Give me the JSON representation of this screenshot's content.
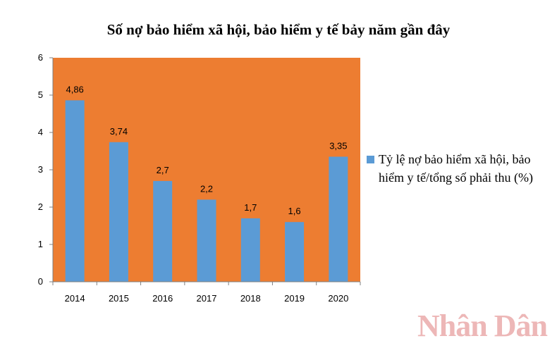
{
  "chart_data": {
    "type": "bar",
    "title": "Số nợ bảo hiểm xã hội, bảo hiểm y tế bảy năm gần đây",
    "categories": [
      "2014",
      "2015",
      "2016",
      "2017",
      "2018",
      "2019",
      "2020"
    ],
    "values": [
      4.86,
      3.74,
      2.7,
      2.2,
      1.7,
      1.6,
      3.35
    ],
    "data_labels": [
      "4,86",
      "3,74",
      "2,7",
      "2,2",
      "1,7",
      "1,6",
      "3,35"
    ],
    "yticks": [
      "0",
      "1",
      "2",
      "3",
      "4",
      "5",
      "6"
    ],
    "ylim": [
      0,
      6
    ],
    "xlabel": "",
    "ylabel": "",
    "series_name": "Tỷ lệ nợ bảo hiểm xã hội, bảo hiểm y tế/tổng số phải thu (%)",
    "legend_position": "right",
    "colors": {
      "plot_bg": "#ed7d31",
      "bar": "#5b9bd5"
    }
  },
  "watermark": "Nhân Dân"
}
